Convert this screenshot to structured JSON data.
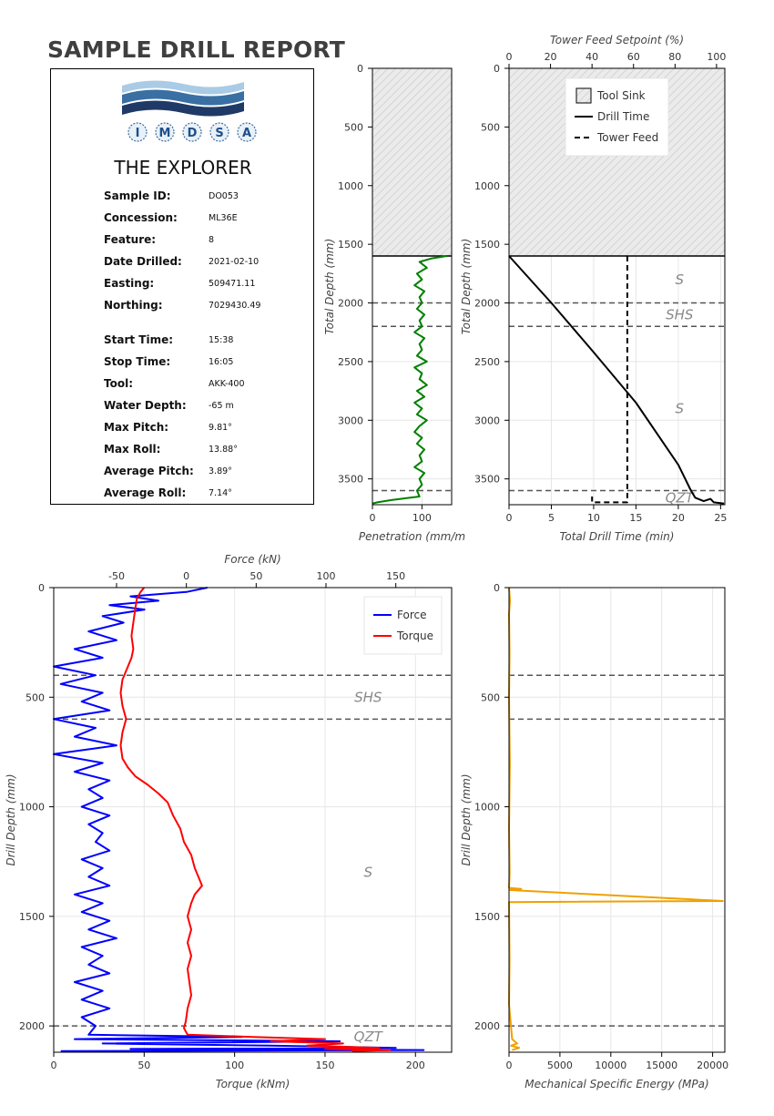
{
  "report": {
    "title": "SAMPLE DRILL REPORT",
    "logo_text": [
      "I",
      "M",
      "D",
      "S",
      "A"
    ],
    "drill_name": "THE EXPLORER",
    "fields": [
      {
        "label": "Sample ID:",
        "value": "DO053"
      },
      {
        "label": "Concession:",
        "value": "ML36E"
      },
      {
        "label": "Feature:",
        "value": "8"
      },
      {
        "label": "Date Drilled:",
        "value": "2021-02-10"
      },
      {
        "label": "Easting:",
        "value": "509471.11"
      },
      {
        "label": "Northing:",
        "value": "7029430.49"
      },
      {
        "label": "Start Time:",
        "value": "15:38"
      },
      {
        "label": "Stop Time:",
        "value": "16:05"
      },
      {
        "label": "Tool:",
        "value": "AKK-400"
      },
      {
        "label": "Water Depth:",
        "value": "-65 m"
      },
      {
        "label": "Max Pitch:",
        "value": "9.81°"
      },
      {
        "label": "Max Roll:",
        "value": "13.88°"
      },
      {
        "label": "Average Pitch:",
        "value": "3.89°"
      },
      {
        "label": "Average Roll:",
        "value": "7.14°"
      }
    ],
    "colors": {
      "logo_light": "#a9cbe6",
      "logo_mid": "#3a6fa3",
      "logo_dark": "#1f3a66",
      "logo_letters": "#1f4f8a"
    }
  },
  "chart_data": [
    {
      "id": "penetration",
      "type": "line",
      "xlabel": "Penetration (mm/m",
      "ylabel": "Total Depth (mm)",
      "xlim": [
        0,
        160
      ],
      "ylim": [
        3720,
        0
      ],
      "xticks": [
        0,
        100
      ],
      "yticks": [
        0,
        500,
        1000,
        1500,
        2000,
        2500,
        3000,
        3500
      ],
      "tool_sink_depth": 1600,
      "layer_boundaries": [
        2000,
        2200,
        3600
      ],
      "series": [
        {
          "color": "#008000",
          "points": [
            [
              150,
              1600
            ],
            [
              120,
              1620
            ],
            [
              95,
              1650
            ],
            [
              110,
              1700
            ],
            [
              90,
              1750
            ],
            [
              100,
              1800
            ],
            [
              85,
              1850
            ],
            [
              105,
              1900
            ],
            [
              95,
              1950
            ],
            [
              100,
              2000
            ],
            [
              90,
              2050
            ],
            [
              105,
              2100
            ],
            [
              95,
              2150
            ],
            [
              100,
              2200
            ],
            [
              85,
              2250
            ],
            [
              105,
              2300
            ],
            [
              95,
              2350
            ],
            [
              100,
              2400
            ],
            [
              90,
              2450
            ],
            [
              110,
              2500
            ],
            [
              85,
              2550
            ],
            [
              100,
              2600
            ],
            [
              95,
              2650
            ],
            [
              110,
              2700
            ],
            [
              90,
              2750
            ],
            [
              105,
              2800
            ],
            [
              85,
              2850
            ],
            [
              100,
              2900
            ],
            [
              90,
              2950
            ],
            [
              110,
              3000
            ],
            [
              95,
              3050
            ],
            [
              85,
              3100
            ],
            [
              100,
              3150
            ],
            [
              90,
              3200
            ],
            [
              105,
              3250
            ],
            [
              95,
              3300
            ],
            [
              100,
              3350
            ],
            [
              85,
              3400
            ],
            [
              105,
              3450
            ],
            [
              95,
              3500
            ],
            [
              100,
              3550
            ],
            [
              90,
              3600
            ],
            [
              95,
              3650
            ],
            [
              40,
              3680
            ],
            [
              10,
              3700
            ],
            [
              0,
              3710
            ]
          ]
        }
      ]
    },
    {
      "id": "drill-time",
      "type": "line",
      "xlabel": "Total Drill Time (min)",
      "ylabel": "Total Depth (mm)",
      "x2label": "Tower Feed Setpoint (%)",
      "xlim": [
        0,
        25.5
      ],
      "x2lim": [
        0,
        104
      ],
      "ylim": [
        3720,
        0
      ],
      "xticks": [
        0,
        5,
        10,
        15,
        20,
        25
      ],
      "x2ticks": [
        0,
        20,
        40,
        60,
        80,
        100
      ],
      "yticks": [
        0,
        500,
        1000,
        1500,
        2000,
        2500,
        3000,
        3500
      ],
      "tool_sink_depth": 1600,
      "layer_boundaries": [
        2000,
        2200,
        3600
      ],
      "layers": [
        {
          "label": "S",
          "depth": 1800
        },
        {
          "label": "SHS",
          "depth": 2100
        },
        {
          "label": "S",
          "depth": 2900
        },
        {
          "label": "QZT",
          "depth": 3660
        }
      ],
      "legend": [
        "Tool Sink",
        "Drill Time",
        "Tower Feed"
      ],
      "series": [
        {
          "name": "Drill Time",
          "color": "#000000",
          "dash": "solid",
          "points": [
            [
              0,
              1600
            ],
            [
              5,
              2000
            ],
            [
              10,
              2420
            ],
            [
              15,
              2850
            ],
            [
              20,
              3380
            ],
            [
              21.5,
              3600
            ],
            [
              22,
              3660
            ],
            [
              23,
              3690
            ],
            [
              23.8,
              3670
            ],
            [
              24.2,
              3700
            ],
            [
              25.4,
              3710
            ]
          ]
        },
        {
          "name": "Tower Feed",
          "color": "#000000",
          "dash": "dashed",
          "axis": "x2",
          "points": [
            [
              57,
              1600
            ],
            [
              57,
              3700
            ],
            [
              40,
              3700
            ],
            [
              40,
              3650
            ]
          ]
        }
      ]
    },
    {
      "id": "force-torque",
      "type": "line",
      "xlabel": "Torque (kNm)",
      "x2label": "Force (kN)",
      "ylabel": "Drill Depth (mm)",
      "xlim": [
        0,
        220
      ],
      "x2lim": [
        -95,
        190
      ],
      "ylim": [
        2120,
        0
      ],
      "xticks": [
        0,
        50,
        100,
        150,
        200
      ],
      "x2ticks": [
        -50,
        0,
        50,
        100,
        150
      ],
      "yticks": [
        0,
        500,
        1000,
        1500,
        2000
      ],
      "layer_boundaries": [
        400,
        600,
        2000
      ],
      "layers": [
        {
          "label": "S",
          "depth": 200
        },
        {
          "label": "SHS",
          "depth": 500
        },
        {
          "label": "S",
          "depth": 1300
        },
        {
          "label": "QZT",
          "depth": 2050
        }
      ],
      "legend": [
        "Force",
        "Torque"
      ],
      "series": [
        {
          "name": "Force",
          "color": "#0000ff",
          "axis": "x2",
          "points": [
            [
              15,
              0
            ],
            [
              0,
              20
            ],
            [
              -40,
              40
            ],
            [
              -20,
              60
            ],
            [
              -55,
              80
            ],
            [
              -30,
              100
            ],
            [
              -60,
              130
            ],
            [
              -45,
              160
            ],
            [
              -70,
              200
            ],
            [
              -50,
              240
            ],
            [
              -80,
              280
            ],
            [
              -60,
              320
            ],
            [
              -95,
              360
            ],
            [
              -65,
              400
            ],
            [
              -90,
              440
            ],
            [
              -60,
              480
            ],
            [
              -75,
              520
            ],
            [
              -55,
              560
            ],
            [
              -95,
              600
            ],
            [
              -65,
              640
            ],
            [
              -80,
              680
            ],
            [
              -50,
              720
            ],
            [
              -95,
              760
            ],
            [
              -60,
              800
            ],
            [
              -80,
              840
            ],
            [
              -55,
              880
            ],
            [
              -70,
              920
            ],
            [
              -60,
              960
            ],
            [
              -75,
              1000
            ],
            [
              -55,
              1040
            ],
            [
              -70,
              1080
            ],
            [
              -60,
              1120
            ],
            [
              -65,
              1160
            ],
            [
              -55,
              1200
            ],
            [
              -75,
              1240
            ],
            [
              -60,
              1280
            ],
            [
              -70,
              1320
            ],
            [
              -55,
              1360
            ],
            [
              -80,
              1400
            ],
            [
              -60,
              1440
            ],
            [
              -75,
              1480
            ],
            [
              -55,
              1520
            ],
            [
              -70,
              1560
            ],
            [
              -50,
              1600
            ],
            [
              -75,
              1640
            ],
            [
              -60,
              1680
            ],
            [
              -70,
              1720
            ],
            [
              -55,
              1760
            ],
            [
              -80,
              1800
            ],
            [
              -60,
              1840
            ],
            [
              -75,
              1880
            ],
            [
              -55,
              1920
            ],
            [
              -75,
              1960
            ],
            [
              -65,
              2000
            ],
            [
              -70,
              2040
            ],
            [
              40,
              2050
            ],
            [
              -80,
              2060
            ],
            [
              110,
              2070
            ],
            [
              -60,
              2080
            ],
            [
              60,
              2090
            ],
            [
              150,
              2100
            ],
            [
              -40,
              2105
            ],
            [
              170,
              2110
            ],
            [
              -90,
              2115
            ]
          ]
        },
        {
          "name": "Torque",
          "color": "#ff0000",
          "axis": "x",
          "points": [
            [
              50,
              0
            ],
            [
              48,
              20
            ],
            [
              46,
              50
            ],
            [
              45,
              100
            ],
            [
              44,
              160
            ],
            [
              43,
              220
            ],
            [
              44,
              280
            ],
            [
              43,
              320
            ],
            [
              40,
              380
            ],
            [
              38,
              420
            ],
            [
              37,
              480
            ],
            [
              38,
              540
            ],
            [
              40,
              600
            ],
            [
              38,
              660
            ],
            [
              37,
              720
            ],
            [
              38,
              780
            ],
            [
              41,
              820
            ],
            [
              45,
              860
            ],
            [
              52,
              900
            ],
            [
              58,
              940
            ],
            [
              63,
              980
            ],
            [
              66,
              1040
            ],
            [
              70,
              1100
            ],
            [
              72,
              1160
            ],
            [
              76,
              1220
            ],
            [
              78,
              1280
            ],
            [
              80,
              1320
            ],
            [
              82,
              1360
            ],
            [
              78,
              1400
            ],
            [
              76,
              1440
            ],
            [
              74,
              1500
            ],
            [
              76,
              1560
            ],
            [
              74,
              1620
            ],
            [
              76,
              1680
            ],
            [
              74,
              1740
            ],
            [
              75,
              1800
            ],
            [
              76,
              1860
            ],
            [
              74,
              1920
            ],
            [
              73,
              1980
            ],
            [
              72,
              2010
            ],
            [
              74,
              2040
            ],
            [
              110,
              2050
            ],
            [
              150,
              2060
            ],
            [
              120,
              2070
            ],
            [
              160,
              2080
            ],
            [
              140,
              2090
            ],
            [
              180,
              2100
            ],
            [
              150,
              2105
            ],
            [
              186,
              2110
            ],
            [
              165,
              2115
            ]
          ]
        }
      ]
    },
    {
      "id": "mse",
      "type": "line",
      "xlabel": "Mechanical Specific Energy (MPa)",
      "ylabel": "Drill Depth (mm)",
      "xlim": [
        0,
        21200
      ],
      "ylim": [
        2120,
        0
      ],
      "xticks": [
        0,
        5000,
        10000,
        15000,
        20000
      ],
      "yticks": [
        0,
        500,
        1000,
        1500,
        2000
      ],
      "layer_boundaries": [
        400,
        600,
        2000
      ],
      "series": [
        {
          "color": "#f0a000",
          "points": [
            [
              0,
              0
            ],
            [
              100,
              60
            ],
            [
              0,
              120
            ],
            [
              50,
              300
            ],
            [
              0,
              500
            ],
            [
              80,
              800
            ],
            [
              0,
              1100
            ],
            [
              60,
              1300
            ],
            [
              0,
              1370
            ],
            [
              1200,
              1375
            ],
            [
              100,
              1380
            ],
            [
              21000,
              1430
            ],
            [
              0,
              1435
            ],
            [
              50,
              1700
            ],
            [
              0,
              1900
            ],
            [
              300,
              2060
            ],
            [
              800,
              2080
            ],
            [
              200,
              2090
            ],
            [
              1000,
              2100
            ],
            [
              300,
              2110
            ]
          ]
        }
      ]
    }
  ]
}
